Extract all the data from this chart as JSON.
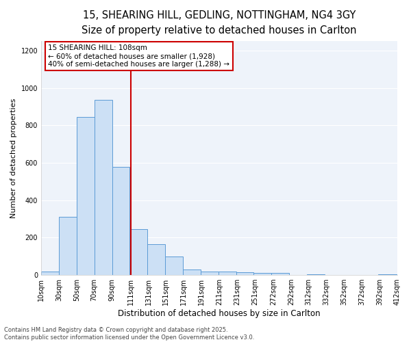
{
  "title_line1": "15, SHEARING HILL, GEDLING, NOTTINGHAM, NG4 3GY",
  "title_line2": "Size of property relative to detached houses in Carlton",
  "xlabel": "Distribution of detached houses by size in Carlton",
  "ylabel": "Number of detached properties",
  "property_size": 108,
  "vline_x": 111,
  "bar_lefts": [
    10,
    30,
    50,
    70,
    90,
    110,
    130,
    150,
    170,
    190,
    210,
    230,
    250,
    270,
    290,
    310,
    330,
    350,
    370,
    390
  ],
  "bar_rights": [
    30,
    50,
    70,
    90,
    110,
    130,
    150,
    170,
    190,
    210,
    230,
    250,
    270,
    290,
    310,
    330,
    350,
    370,
    390,
    412
  ],
  "bar_heights": [
    20,
    310,
    845,
    935,
    580,
    245,
    165,
    100,
    30,
    20,
    20,
    15,
    10,
    10,
    0,
    5,
    0,
    0,
    0,
    5
  ],
  "bar_color": "#cce0f5",
  "bar_edge_color": "#5b9bd5",
  "vline_color": "#cc0000",
  "bg_color": "#eef3fa",
  "annotation_text": "15 SHEARING HILL: 108sqm\n← 60% of detached houses are smaller (1,928)\n40% of semi-detached houses are larger (1,288) →",
  "annotation_box_color": "#ffffff",
  "annotation_border_color": "#cc0000",
  "footer_text": "Contains HM Land Registry data © Crown copyright and database right 2025.\nContains public sector information licensed under the Open Government Licence v3.0.",
  "ylim": [
    0,
    1250
  ],
  "xlim": [
    10,
    412
  ],
  "yticks": [
    0,
    200,
    400,
    600,
    800,
    1000,
    1200
  ],
  "xtick_positions": [
    10,
    30,
    50,
    70,
    90,
    111,
    131,
    151,
    171,
    191,
    211,
    231,
    251,
    272,
    292,
    312,
    332,
    352,
    372,
    392,
    412
  ],
  "tick_labels": [
    "10sqm",
    "30sqm",
    "50sqm",
    "70sqm",
    "90sqm",
    "111sqm",
    "131sqm",
    "151sqm",
    "171sqm",
    "191sqm",
    "211sqm",
    "231sqm",
    "251sqm",
    "272sqm",
    "292sqm",
    "312sqm",
    "332sqm",
    "352sqm",
    "372sqm",
    "392sqm",
    "412sqm"
  ],
  "title_fontsize": 10.5,
  "subtitle_fontsize": 9,
  "ylabel_fontsize": 8,
  "xlabel_fontsize": 8.5,
  "tick_fontsize": 7,
  "annotation_fontsize": 7.5,
  "footer_fontsize": 6
}
